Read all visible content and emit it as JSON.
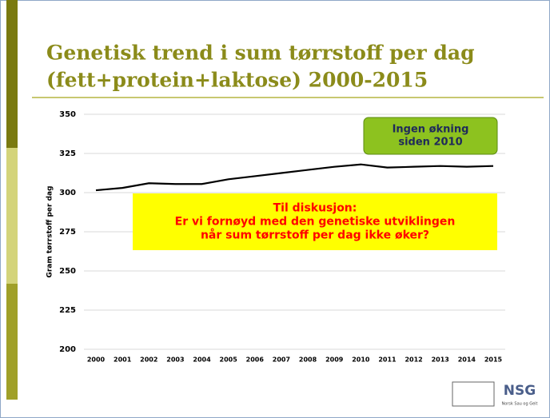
{
  "chart_data": {
    "type": "line",
    "title": [
      "Genetisk trend i sum tørrstoff per dag",
      "(fett+protein+laktose) 2000-2015"
    ],
    "y_label": "Gram tørrstoff per dag",
    "categories": [
      "2000",
      "2001",
      "2002",
      "2003",
      "2004",
      "2005",
      "2006",
      "2007",
      "2008",
      "2009",
      "2010",
      "2011",
      "2012",
      "2013",
      "2014",
      "2015"
    ],
    "series": [
      {
        "name": "Sum tørrstoff per dag",
        "color": "#000000",
        "values": [
          301.5,
          303,
          306,
          305.5,
          305.5,
          308.5,
          310.5,
          312.5,
          314.5,
          316.5,
          318,
          316,
          316.5,
          317,
          316.5,
          317
        ]
      }
    ],
    "ylim": [
      200,
      350
    ],
    "yticks": [
      200,
      225,
      250,
      275,
      300,
      325,
      350
    ],
    "grid": true,
    "annotations": [
      {
        "lines": [
          "Ingen økning",
          "siden 2010"
        ],
        "fill": "#8dc21f",
        "color": "#1f2a5a"
      },
      {
        "lines": [
          "Til diskusjon:",
          "Er vi fornøyd med den genetiske utviklingen",
          "når sum tørrstoff per dag ikke øker?"
        ],
        "fill": "#ffff00",
        "color": "#ff0000"
      }
    ]
  },
  "logo": {
    "text": "NSG",
    "subtext": "Norsk Sau og Geit"
  }
}
